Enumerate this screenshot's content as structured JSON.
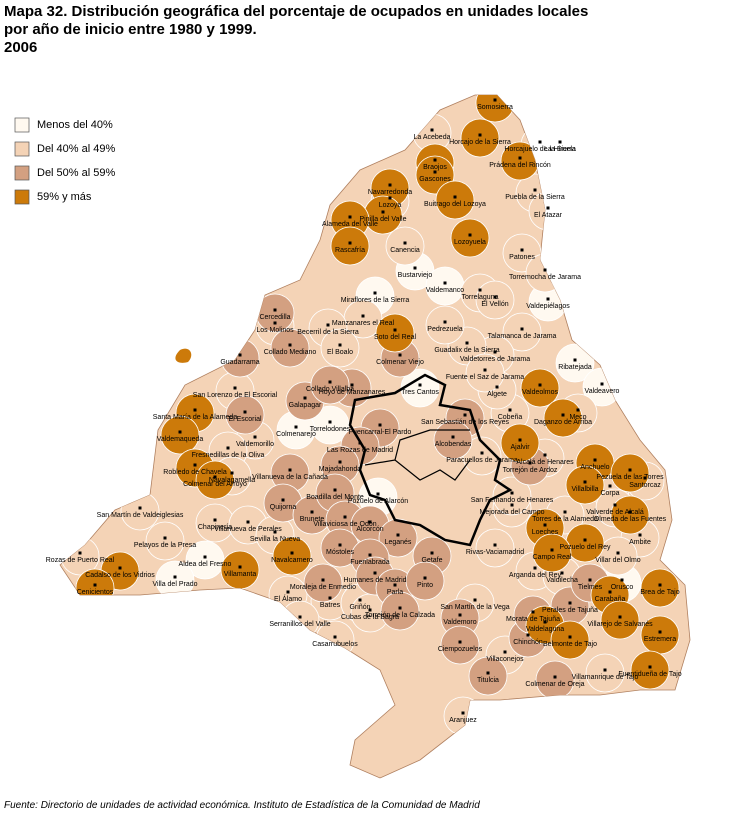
{
  "header": {
    "title_lines": [
      "Mapa 32. Distribución geográfica del porcentaje de ocupados en unidades locales",
      "por año de inicio entre 1980 y 1999.",
      "2006"
    ]
  },
  "legend": [
    {
      "label": "Menos del 40%",
      "color": "#fff9f0",
      "municipalities": [
        "Miraflores de la Sierra",
        "Bustarviejo",
        "Valdemanco",
        "Valdepiélagos",
        "Ribatejada",
        "Valdeavero",
        "Tres Cantos",
        "Torrelodones",
        "Colmenarejo",
        "Pozuelo de Alarcón",
        "Aldea del Fresno",
        "Villa del Prado",
        "Orusco"
      ]
    },
    {
      "label": "Del 40% al 49%",
      "color": "#f4d3b6",
      "municipalities": [
        "La Acebeda",
        "Horcajuelo de la Sierra",
        "La Hiruela",
        "Puebla de la Sierra",
        "El Atazar",
        "Patones",
        "Torremocha de Jarama",
        "Torrelaguna",
        "El Vellón",
        "Talamanca de Jarama",
        "Valdetorres de Jarama",
        "Guadalix de la Sierra",
        "Pedrezuela",
        "Lozoya",
        "Canencia",
        "Manzanares el Real",
        "Becerril de la Sierra",
        "Los Molinos",
        "El Boalo",
        "San Lorenzo de El Escorial",
        "Valdemorillo",
        "Fresnedillas de la Oliva",
        "Navalagamella",
        "Chapinería",
        "Pelayos de la Presa",
        "San Martín de Valdeiglesias",
        "Rozas de Puerto Real",
        "Villanueva de Perales",
        "Sevilla la Nueva",
        "El Álamo",
        "Batres",
        "Griñón",
        "Serranillos del Valle",
        "Casarrubuelos",
        "Cubas de la Sagra",
        "San Martín de la Vega",
        "Villaconejos",
        "Aranjuez",
        "Arganda del Rey",
        "Rivas-Vaciamadrid",
        "Mejorada del Campo",
        "Torres de la Alameda",
        "Alcalá de Henares",
        "Meco",
        "Cobeña",
        "Algete",
        "Fuente el Saz de Jarama",
        "Paracuellos de Jarama",
        "San Fernando de Henares",
        "Corpa",
        "Santorcaz",
        "Valverde de Alcalá",
        "Ambite",
        "Villar del Olmo",
        "Valdilecha",
        "Villamanrique de Tajo"
      ]
    },
    {
      "label": "Del 50% al 59%",
      "color": "#d3a081",
      "municipalities": [
        "Colmenar Viejo",
        "San Sebastián de los Reyes",
        "Alcobendas",
        "Fuencarral-El Pardo",
        "Hoyo de Manzanares",
        "Galapagar",
        "Collado Villalba",
        "Collado Mediano",
        "Guadarrama",
        "Cercedilla",
        "El Escorial",
        "Las Rozas de Madrid",
        "Majadahonda",
        "Villanueva de la Cañada",
        "Quijorna",
        "Brunete",
        "Boadilla del Monte",
        "Villaviciosa de Odón",
        "Alcorcón",
        "Móstoles",
        "Leganés",
        "Getafe",
        "Fuenlabrada",
        "Humanes de Madrid",
        "Parla",
        "Pinto",
        "Moraleja de Enmedio",
        "Torrejón de la Calzada",
        "Valdemoro",
        "Ciempozuelos",
        "Titulcia",
        "Chinchón",
        "Colmenar de Oreja",
        "Morata de Tajuña",
        "Perales de Tajuña",
        "Tielmes",
        "Torrejón de Ardoz"
      ]
    },
    {
      "label": "59% y más",
      "color": "#cc7a0a",
      "municipalities": [
        "Somosierra",
        "Horcajo de la Sierra",
        "Prádena del Rincón",
        "Braojos",
        "Gascones",
        "Navarredonda",
        "Pinilla del Valle",
        "Alameda del Valle",
        "Rascafría",
        "Lozoyuela",
        "Buitrago del Lozoya",
        "Soto del Real",
        "Santa María de la Alameda",
        "Valdemaqueda",
        "Robledo de Chavela",
        "Colmenar del Arroyo",
        "Cadalso de los Vidrios",
        "Cenicientos",
        "Villamanta",
        "Navalcarnero",
        "Valdeolmos",
        "Daganzo de Arriba",
        "Ajalvir",
        "Anchuelo",
        "Pezuela de las Torres",
        "Villalbilla",
        "Olmeda de las Fuentes",
        "Loeches",
        "Pozuelo del Rey",
        "Campo Real",
        "Carabaña",
        "Brea de Tajo",
        "Estremera",
        "Valdelaguna",
        "Belmonte de Tajo",
        "Villarejo de Salvanés",
        "Fuentidueña de Tajo"
      ]
    }
  ],
  "source": "Fuente: Directorio de unidades de actividad económica. Instituto de Estadística de la Comunidad de Madrid"
}
